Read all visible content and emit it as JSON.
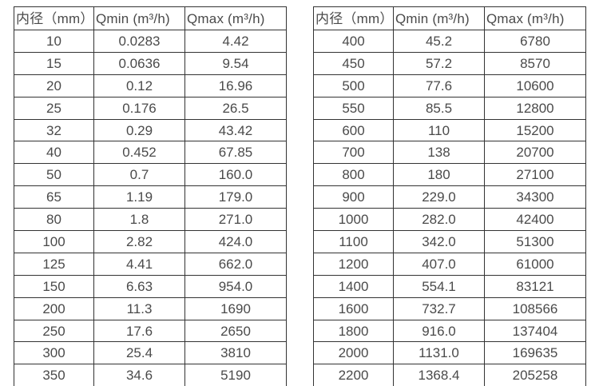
{
  "header": {
    "diameter": "内径（mm）",
    "qmin": "Qmin (m³/h)",
    "qmax": "Qmax (m³/h)"
  },
  "tables": [
    {
      "name": "flow-table-small-diameters",
      "rows": [
        [
          "10",
          "0.0283",
          "4.42"
        ],
        [
          "15",
          "0.0636",
          "9.54"
        ],
        [
          "20",
          "0.12",
          "16.96"
        ],
        [
          "25",
          "0.176",
          "26.5"
        ],
        [
          "32",
          "0.29",
          "43.42"
        ],
        [
          "40",
          "0.452",
          "67.85"
        ],
        [
          "50",
          "0.7",
          "160.0"
        ],
        [
          "65",
          "1.19",
          "179.0"
        ],
        [
          "80",
          "1.8",
          "271.0"
        ],
        [
          "100",
          "2.82",
          "424.0"
        ],
        [
          "125",
          "4.41",
          "662.0"
        ],
        [
          "150",
          "6.63",
          "954.0"
        ],
        [
          "200",
          "11.3",
          "1690"
        ],
        [
          "250",
          "17.6",
          "2650"
        ],
        [
          "300",
          "25.4",
          "3810"
        ],
        [
          "350",
          "34.6",
          "5190"
        ]
      ]
    },
    {
      "name": "flow-table-large-diameters",
      "rows": [
        [
          "400",
          "45.2",
          "6780"
        ],
        [
          "450",
          "57.2",
          "8570"
        ],
        [
          "500",
          "77.6",
          "10600"
        ],
        [
          "550",
          "85.5",
          "12800"
        ],
        [
          "600",
          "110",
          "15200"
        ],
        [
          "700",
          "138",
          "20700"
        ],
        [
          "800",
          "180",
          "27100"
        ],
        [
          "900",
          "229.0",
          "34300"
        ],
        [
          "1000",
          "282.0",
          "42400"
        ],
        [
          "1100",
          "342.0",
          "51300"
        ],
        [
          "1200",
          "407.0",
          "61000"
        ],
        [
          "1400",
          "554.1",
          "83121"
        ],
        [
          "1600",
          "732.7",
          "108566"
        ],
        [
          "1800",
          "916.0",
          "137404"
        ],
        [
          "2000",
          "1131.0",
          "169635"
        ],
        [
          "2200",
          "1368.4",
          "205258"
        ]
      ]
    }
  ],
  "colors": {
    "border": "#333333",
    "text": "#4a4a4a",
    "background": "#ffffff"
  }
}
